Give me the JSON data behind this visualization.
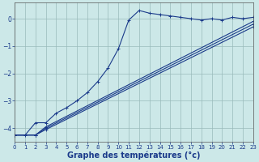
{
  "background_color": "#cce8e8",
  "grid_color": "#99bbbb",
  "line_color": "#1a3a8a",
  "xlabel": "Graphe des températures (°c)",
  "xlabel_fontsize": 7,
  "ylim": [
    -4.5,
    0.6
  ],
  "xlim": [
    0,
    23
  ],
  "yticks": [
    0,
    -1,
    -2,
    -3,
    -4
  ],
  "xticks": [
    0,
    1,
    2,
    3,
    4,
    5,
    6,
    7,
    8,
    9,
    10,
    11,
    12,
    13,
    14,
    15,
    16,
    17,
    18,
    19,
    20,
    21,
    22,
    23
  ],
  "series": [
    {
      "x": [
        0,
        1,
        2,
        3,
        4,
        5,
        6,
        7,
        8,
        9,
        10,
        11,
        12,
        13,
        14,
        15,
        16,
        17,
        18,
        19,
        20,
        21,
        22,
        23
      ],
      "y": [
        -4.25,
        -4.25,
        -3.8,
        -3.8,
        -3.45,
        -3.25,
        -3.0,
        -2.7,
        -2.3,
        -1.8,
        -1.1,
        -0.05,
        0.3,
        0.2,
        0.15,
        0.1,
        0.05,
        0.0,
        -0.05,
        0.0,
        -0.05,
        0.05,
        0.0,
        0.05
      ]
    },
    {
      "x": [
        0,
        2,
        3,
        23
      ],
      "y": [
        -4.25,
        -4.25,
        -3.95,
        -0.1
      ]
    },
    {
      "x": [
        0,
        2,
        3,
        23
      ],
      "y": [
        -4.25,
        -4.25,
        -4.0,
        -0.2
      ]
    },
    {
      "x": [
        0,
        2,
        3,
        23
      ],
      "y": [
        -4.25,
        -4.25,
        -4.05,
        -0.3
      ]
    }
  ]
}
